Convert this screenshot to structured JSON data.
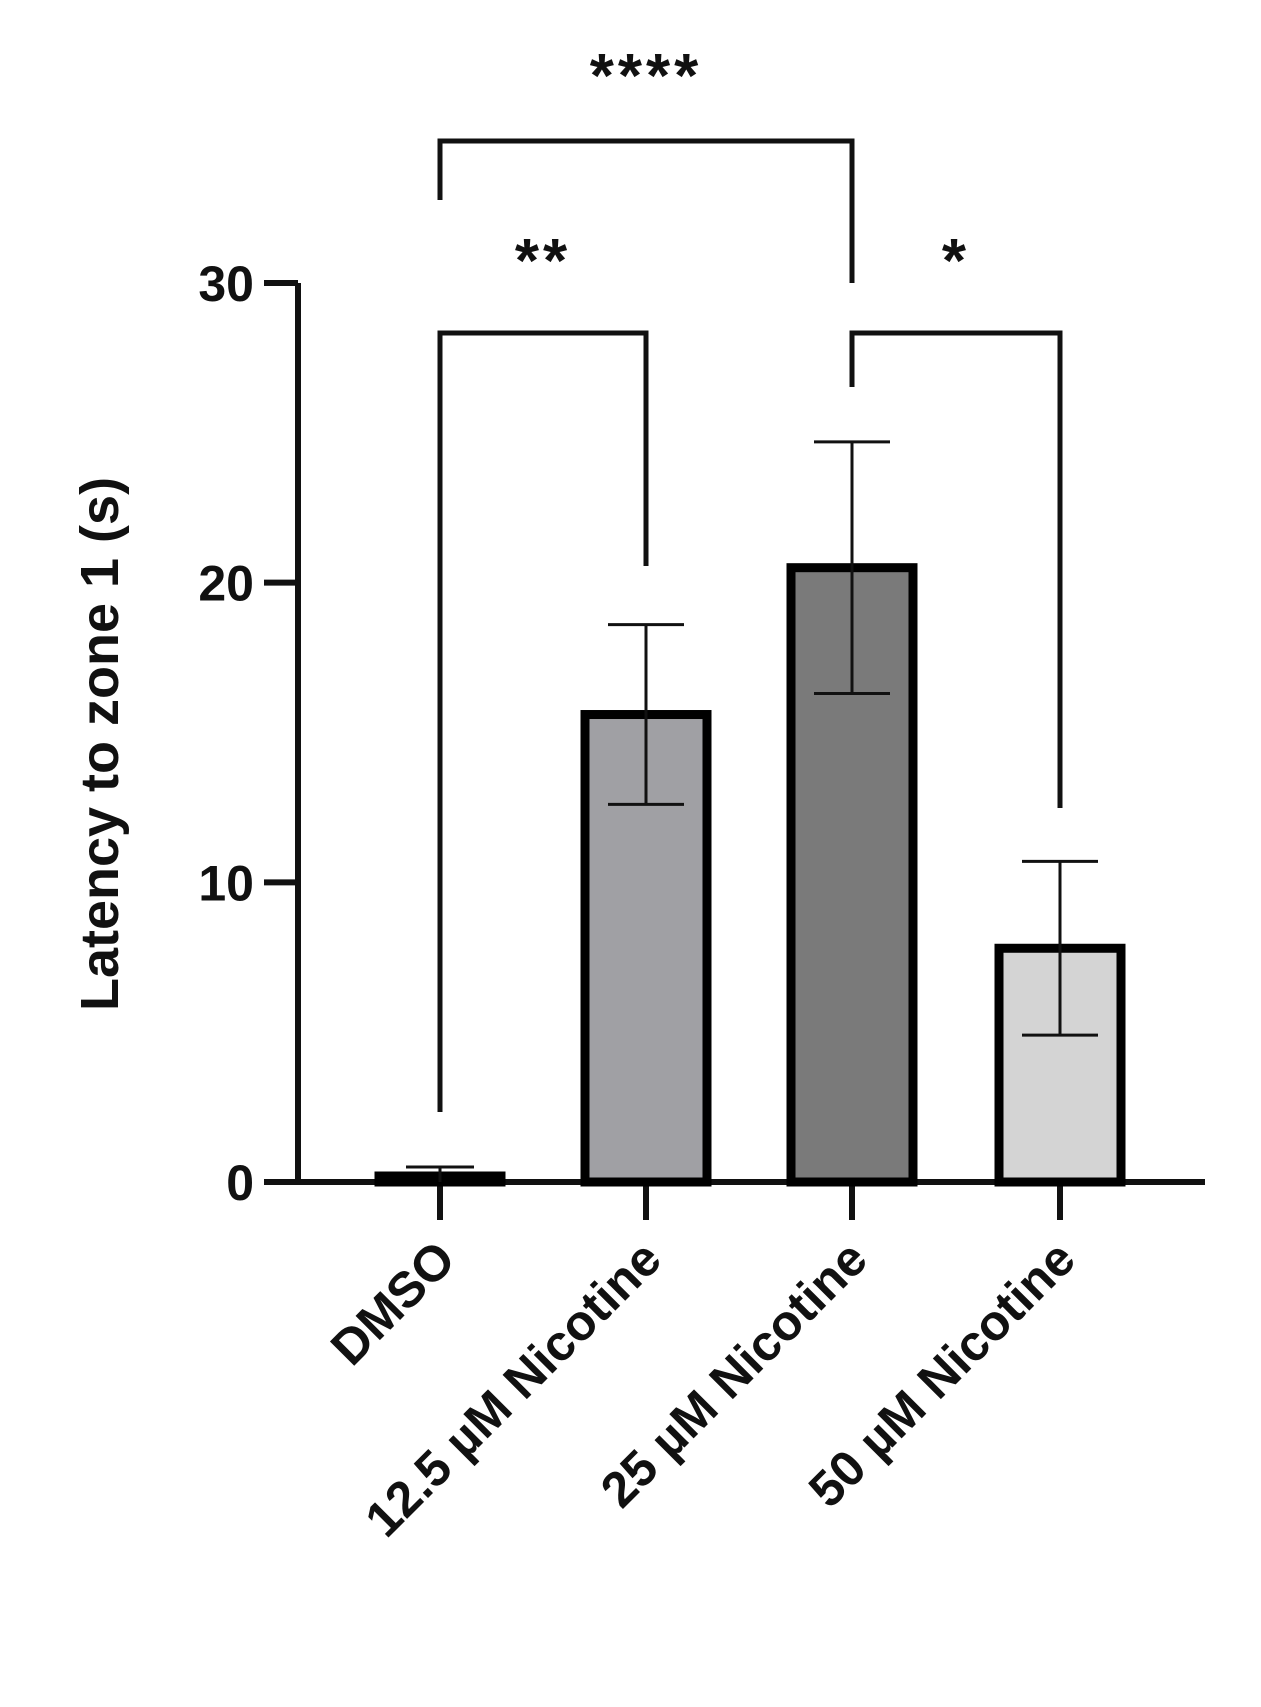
{
  "chart_data": {
    "type": "bar",
    "title": "",
    "xlabel": "",
    "ylabel": "Latency to zone 1 (s)",
    "ylim": [
      0,
      30
    ],
    "yticks": [
      0,
      10,
      20,
      30
    ],
    "ytick_labels": [
      "0",
      "10",
      "20",
      "30"
    ],
    "grid": false,
    "categories": [
      "DMSO",
      "12.5 µM Nicotine",
      "25 µM Nicotine",
      "50 µM Nicotine"
    ],
    "values": [
      0.2,
      15.6,
      20.5,
      7.8
    ],
    "error": [
      0.3,
      3.0,
      4.2,
      2.9
    ],
    "colors": [
      "#000000",
      "#a0a0a4",
      "#7a7a7a",
      "#d4d4d4"
    ],
    "significance": [
      {
        "from": 0,
        "to": 1,
        "label": "**"
      },
      {
        "from": 0,
        "to": 2,
        "label": "****"
      },
      {
        "from": 2,
        "to": 3,
        "label": "*"
      }
    ]
  }
}
